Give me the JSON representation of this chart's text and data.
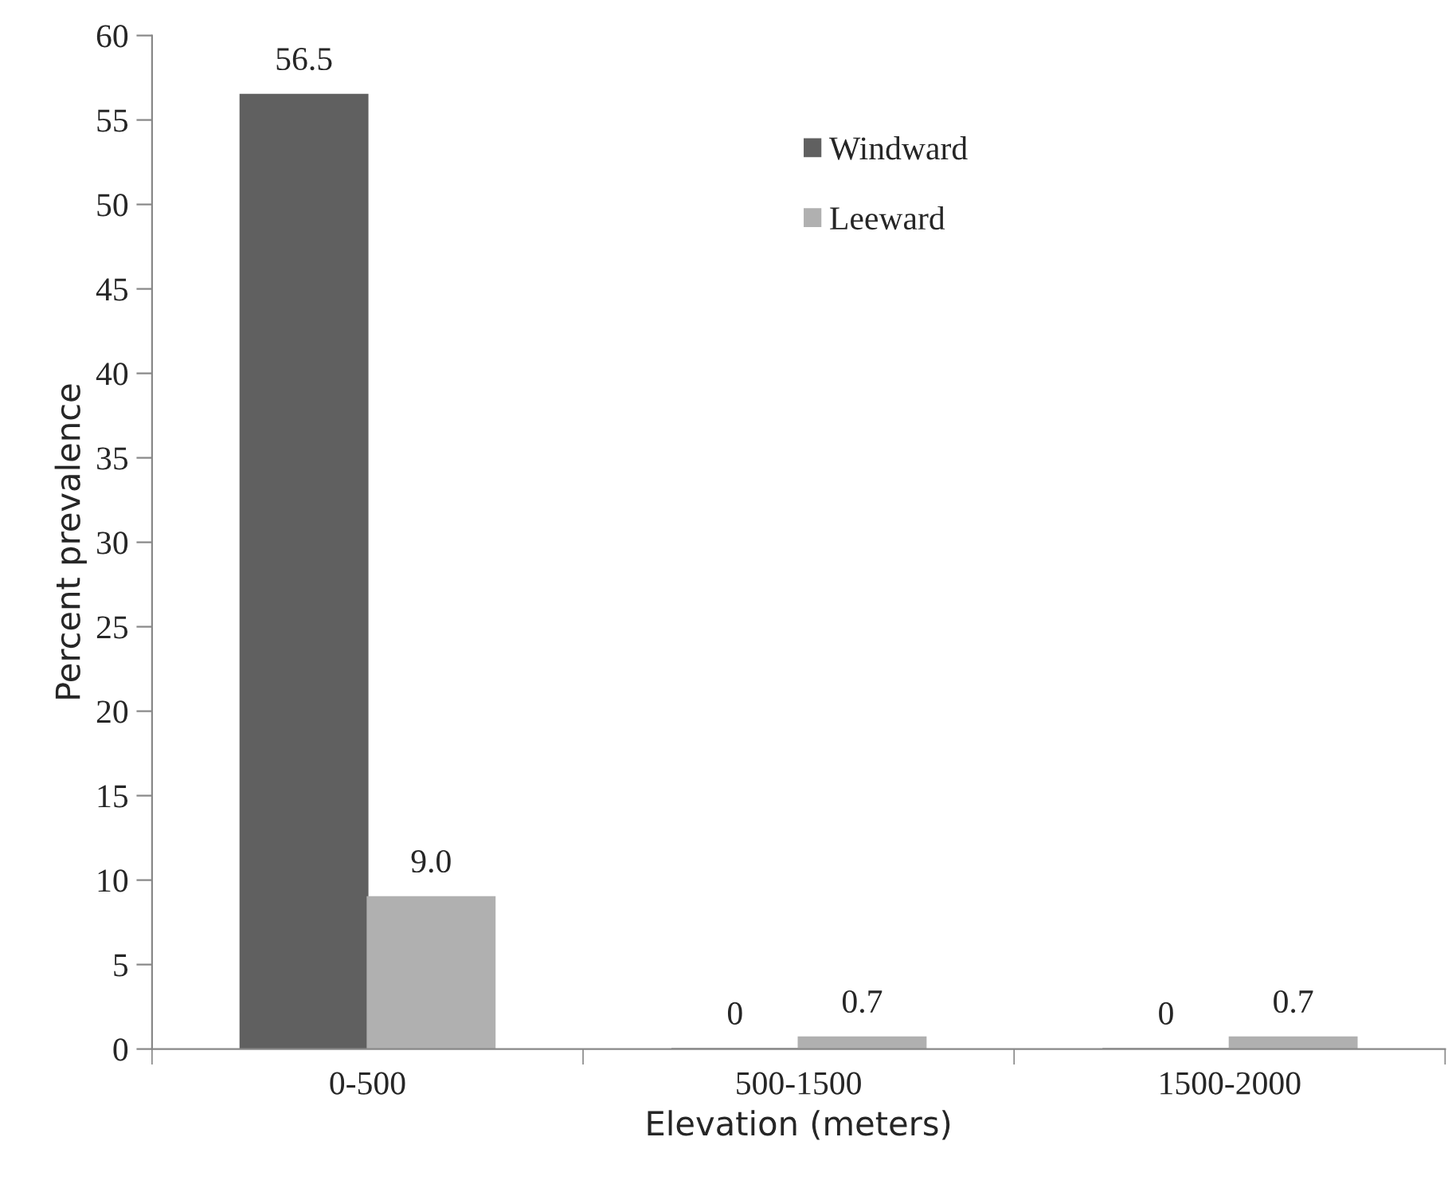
{
  "chart_data": {
    "type": "bar",
    "xlabel": "Elevation (meters)",
    "ylabel": "Percent prevalence",
    "categories": [
      "0-500",
      "500-1500",
      "1500-2000"
    ],
    "series": [
      {
        "name": "Windward",
        "color": "#606060",
        "values": [
          56.5,
          0,
          0
        ],
        "value_labels": [
          "56.5",
          "0",
          "0"
        ]
      },
      {
        "name": "Leeward",
        "color": "#b0b0b0",
        "values": [
          9.0,
          0.7,
          0.7
        ],
        "value_labels": [
          "9.0",
          "0.7",
          "0.7"
        ]
      }
    ],
    "ylim": [
      0,
      60
    ],
    "yticks": [
      0,
      5,
      10,
      15,
      20,
      25,
      30,
      35,
      40,
      45,
      50,
      55,
      60
    ],
    "grid": false,
    "legend": "top right"
  }
}
